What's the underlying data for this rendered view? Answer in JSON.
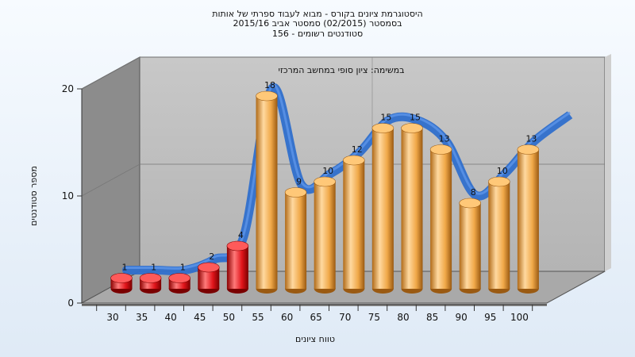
{
  "chart_data": {
    "type": "bar",
    "title_lines": [
      "היסטוגרמת ציונים בקורס - מבוא לעבוד ספרתי של אותות",
      "בסמסטר  (02/2015)  סמסטר אביב 2015/16",
      "סטודנטים רשומים - 156"
    ],
    "subtitle": "במשימה: ציון סופי במחשב המרכזי",
    "xlabel": "טווח ציונים",
    "ylabel": "מספר סטודנטים",
    "ylim": [
      0,
      20
    ],
    "yticks": [
      0,
      10,
      20
    ],
    "categories": [
      "30",
      "35",
      "40",
      "45",
      "50",
      "55",
      "60",
      "65",
      "70",
      "75",
      "80",
      "85",
      "90",
      "95",
      "100"
    ],
    "values": [
      1,
      1,
      1,
      2,
      4,
      18,
      9,
      10,
      12,
      15,
      15,
      13,
      8,
      10,
      13
    ],
    "fail_threshold_count": 5,
    "colors": {
      "fail": "#e0141a",
      "pass": "#f0a848",
      "trend": "#2f6fcc",
      "wall_back": "#bdbdbd",
      "wall_left": "#8c8c8c",
      "floor": "#a9a9a9"
    },
    "grid": true,
    "trend_line": true
  }
}
